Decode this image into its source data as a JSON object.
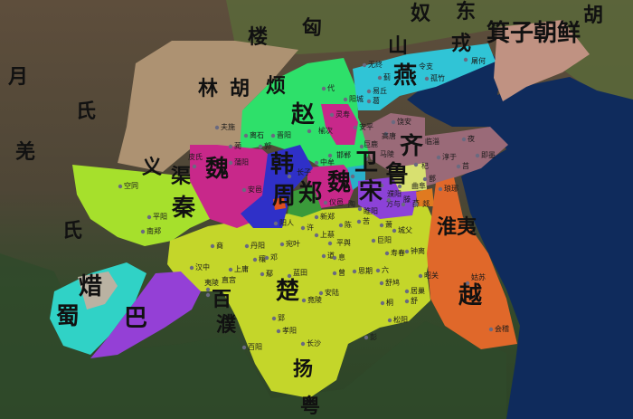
{
  "colors": {
    "sea": "#0f2b5c",
    "qin": "#a6e02c",
    "chu": "#c4d62a",
    "zhao": "#2ee06a",
    "yan": "#30c4d6",
    "qi": "#9a6a78",
    "wei": "#c8288a",
    "han": "#2f30c8",
    "song": "#8c42d8",
    "lu": "#d8e070",
    "yue": "#e0682a",
    "jizi_chaoxian": "#c09282",
    "shu": "#30d2c6",
    "xi": "#bab2a2",
    "ba": "#9440d6",
    "zheng": "#3a9a3a",
    "wey": "#2ab0c8",
    "zhou": "#e05020",
    "tan": "#e07a20"
  },
  "states": [
    "赵",
    "魏",
    "韩",
    "魏",
    "齐",
    "鲁",
    "宋",
    "卫",
    "郑",
    "秦",
    "楚",
    "越",
    "燕",
    "周",
    "巴",
    "蜀",
    "焟",
    "箕子朝鲜"
  ],
  "regions": [
    "匈",
    "奴",
    "东",
    "胡",
    "楼",
    "山",
    "戎",
    "林",
    "胡",
    "烦",
    "月",
    "氏",
    "羌",
    "氏",
    "义",
    "渠",
    "百",
    "濮",
    "扬",
    "粤",
    "淮夷"
  ],
  "cities": [
    "夫施",
    "离石",
    "晋阳",
    "榆次",
    "蔺",
    "郭",
    "中牟",
    "蒲阳",
    "长子",
    "皮氏",
    "邯郸",
    "安邑",
    "阳人",
    "新郑",
    "许",
    "上蔡",
    "仪邑",
    "平阳",
    "南郑",
    "空同",
    "代",
    "无终",
    "令支",
    "屠何",
    "蓟",
    "孤竹",
    "易丘",
    "阳城",
    "葛",
    "灵寿",
    "安平",
    "饶安",
    "高唐",
    "临淄",
    "夜",
    "巨鹿",
    "马陵",
    "淳于",
    "即墨",
    "莒",
    "杞",
    "濮阳",
    "陶",
    "方与",
    "曲阜",
    "滕",
    "薛",
    "郯",
    "鄫",
    "琅琊",
    "睢阳",
    "陈",
    "苦",
    "萧",
    "城父",
    "商",
    "丹阳",
    "宛叶",
    "平舆",
    "巨阳",
    "钟离",
    "汉中",
    "穰",
    "邓",
    "上庸",
    "鄢",
    "蓝田",
    "道",
    "息",
    "曾",
    "思期",
    "六",
    "寿春",
    "昭关",
    "舒鸠",
    "居巢",
    "舒",
    "桐",
    "松阳",
    "彭",
    "安陆",
    "竟陵",
    "夷陵",
    "郢",
    "孝阳",
    "长沙",
    "百阳",
    "直宫",
    "姑苏",
    "会稽"
  ]
}
